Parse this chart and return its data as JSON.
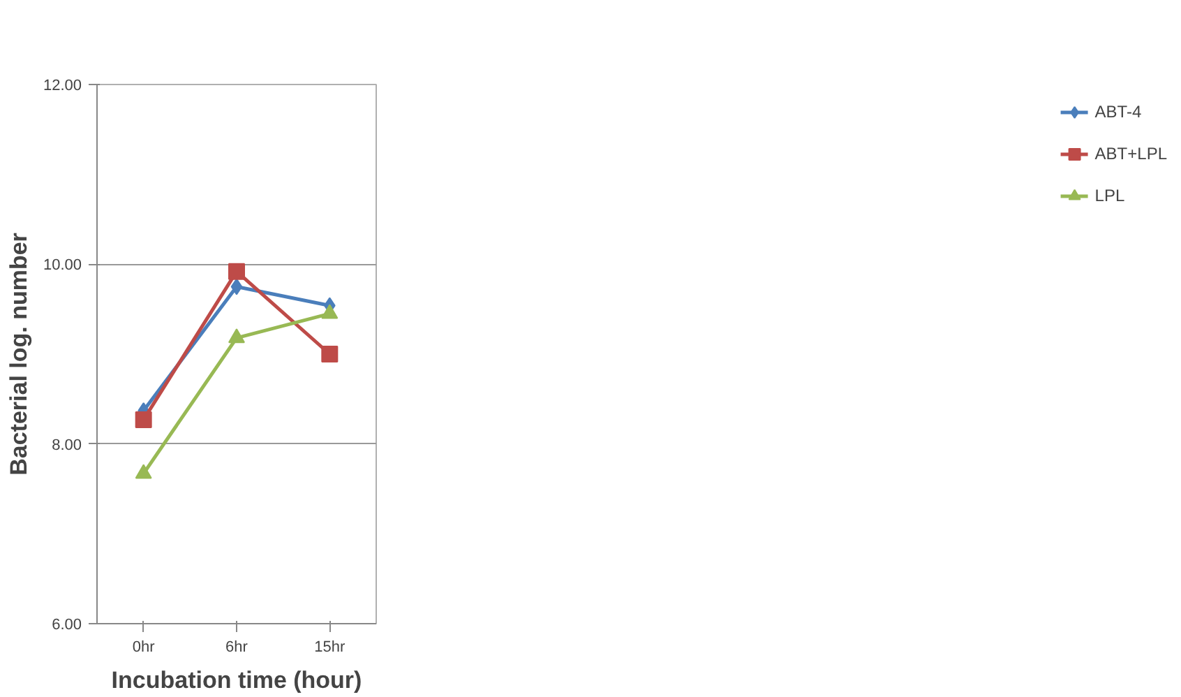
{
  "chart_data": {
    "type": "line",
    "xlabel": "Incubation time (hour)",
    "ylabel": "Bacterial log. number",
    "categories": [
      "0hr",
      "6hr",
      "15hr"
    ],
    "ylim": [
      6,
      12
    ],
    "yticks": [
      {
        "value": 6,
        "label": "6.00"
      },
      {
        "value": 8,
        "label": "8.00"
      },
      {
        "value": 10,
        "label": "10.00"
      },
      {
        "value": 12,
        "label": "12.00"
      }
    ],
    "grid": "y",
    "legend": "right",
    "line_style": "solid",
    "series": [
      {
        "name": "ABT-4",
        "color": "#4a7ebb",
        "marker": "diamond",
        "values": [
          8.37,
          9.75,
          9.54
        ]
      },
      {
        "name": "ABT+LPL",
        "color": "#be4b48",
        "marker": "square",
        "values": [
          8.27,
          9.92,
          9.0
        ]
      },
      {
        "name": "LPL",
        "color": "#98b954",
        "marker": "triangle",
        "values": [
          7.67,
          9.18,
          9.45
        ]
      }
    ]
  }
}
